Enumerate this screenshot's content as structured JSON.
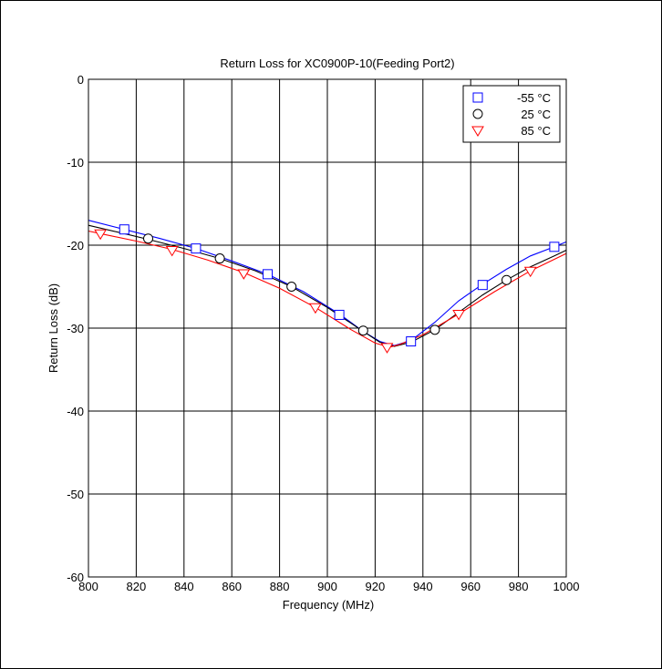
{
  "chart_data": {
    "type": "line",
    "title": "Return Loss for XC0900P-10(Feeding Port2)",
    "xlabel": "Frequency (MHz)",
    "ylabel": "Return Loss (dB)",
    "xlim": [
      800,
      1000
    ],
    "ylim": [
      -60,
      0
    ],
    "x_ticks": [
      800,
      820,
      840,
      860,
      880,
      900,
      920,
      940,
      960,
      980,
      1000
    ],
    "y_ticks": [
      0,
      -10,
      -20,
      -30,
      -40,
      -50,
      -60
    ],
    "grid": true,
    "legend_position": "top-right",
    "series": [
      {
        "name": "-55 °C",
        "color": "#0000ff",
        "marker": "square",
        "line_x": [
          800,
          815,
          830,
          845,
          860,
          875,
          890,
          905,
          915,
          922,
          928,
          935,
          945,
          955,
          965,
          975,
          985,
          995,
          1000
        ],
        "line_y": [
          -17.0,
          -18.1,
          -19.2,
          -20.4,
          -21.9,
          -23.5,
          -25.6,
          -28.3,
          -30.4,
          -31.6,
          -32.1,
          -31.5,
          -29.3,
          -26.7,
          -24.7,
          -22.9,
          -21.3,
          -20.2,
          -19.6
        ],
        "marker_x": [
          815,
          845,
          875,
          905,
          935,
          965,
          995
        ],
        "marker_y": [
          -18.1,
          -20.4,
          -23.5,
          -28.4,
          -31.6,
          -24.8,
          -20.2
        ]
      },
      {
        "name": "25 °C",
        "color": "#000000",
        "marker": "circle",
        "line_x": [
          800,
          815,
          825,
          840,
          855,
          870,
          885,
          900,
          915,
          922,
          928,
          935,
          945,
          955,
          965,
          975,
          985,
          995,
          1000
        ],
        "line_y": [
          -17.6,
          -18.6,
          -19.3,
          -20.4,
          -21.6,
          -23.1,
          -25.0,
          -27.5,
          -30.4,
          -31.7,
          -32.2,
          -31.7,
          -30.2,
          -28.1,
          -26.0,
          -24.2,
          -22.6,
          -21.3,
          -20.6
        ],
        "marker_x": [
          825,
          855,
          885,
          915,
          945,
          975
        ],
        "marker_y": [
          -19.2,
          -21.6,
          -25.0,
          -30.3,
          -30.2,
          -24.2
        ]
      },
      {
        "name": "85 °C",
        "color": "#ff0000",
        "marker": "triangle-down",
        "line_x": [
          800,
          805,
          820,
          835,
          850,
          865,
          880,
          895,
          910,
          920,
          926,
          930,
          940,
          955,
          970,
          985,
          1000
        ],
        "line_y": [
          -18.3,
          -18.6,
          -19.5,
          -20.5,
          -21.8,
          -23.3,
          -25.2,
          -27.5,
          -30.2,
          -31.8,
          -32.3,
          -32.0,
          -30.8,
          -28.3,
          -25.6,
          -23.1,
          -21.0
        ],
        "marker_x": [
          805,
          835,
          865,
          895,
          925,
          955,
          985
        ],
        "marker_y": [
          -18.6,
          -20.6,
          -23.4,
          -27.5,
          -32.3,
          -28.3,
          -23.1
        ]
      }
    ]
  }
}
